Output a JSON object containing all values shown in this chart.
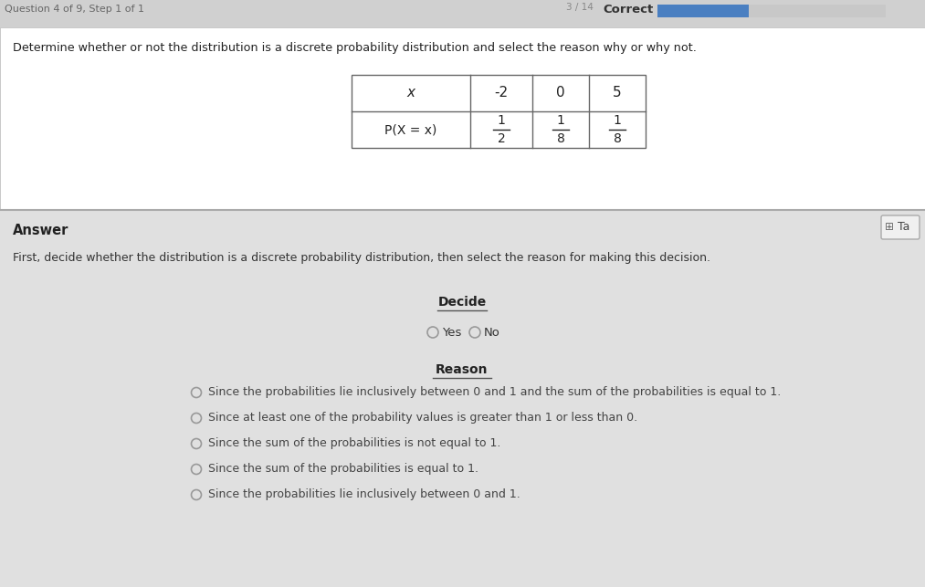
{
  "bg_color": "#d8d8d8",
  "top_section_bg": "#ffffff",
  "bottom_section_bg": "#e0e0e0",
  "header_bg": "#e8e8e8",
  "correct_text": "Correct",
  "progress_bar_color": "#4a7fc1",
  "question_text": "Determine whether or not the distribution is a discrete probability distribution and select the reason why or why not.",
  "table_x_label": "x",
  "table_x_values": [
    "-2",
    "0",
    "5"
  ],
  "table_px_label": "P(X = x)",
  "answer_label": "Answer",
  "ta_button_text": "Ta",
  "instruction_text": "First, decide whether the distribution is a discrete probability distribution, then select the reason for making this decision.",
  "decide_label": "Decide",
  "yes_text": "Yes",
  "no_text": "No",
  "reason_label": "Reason",
  "reasons": [
    "Since the probabilities lie inclusively between 0 and 1 and the sum of the probabilities is equal to 1.",
    "Since at least one of the probability values is greater than 1 or less than 0.",
    "Since the sum of the probabilities is not equal to 1.",
    "Since the sum of the probabilities is equal to 1.",
    "Since the probabilities lie inclusively between 0 and 1."
  ],
  "fractions": [
    [
      "1",
      "2"
    ],
    [
      "1",
      "8"
    ],
    [
      "1",
      "8"
    ]
  ],
  "header_text_partial": "Question 4 of 9, Step 1 of 1",
  "score_text": "3 / 14"
}
